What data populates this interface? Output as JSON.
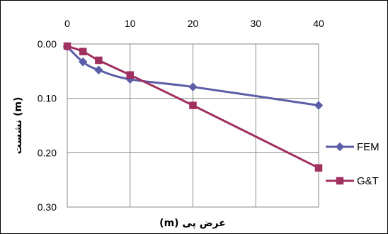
{
  "chart_data": {
    "type": "line",
    "title": "",
    "xlabel": "عرض پی (m)",
    "ylabel": "نشست (m)",
    "x_axis_position": "top",
    "y_axis_inverted": true,
    "xlim": [
      0,
      40
    ],
    "ylim": [
      0,
      0.3
    ],
    "x_ticks": [
      0,
      10,
      20,
      30,
      40
    ],
    "y_ticks": [
      0,
      0.1,
      0.2,
      0.3
    ],
    "x_tick_labels": [
      "0",
      "10",
      "20",
      "30",
      "40"
    ],
    "y_tick_labels": [
      "0.00",
      "0.10",
      "0.20",
      "0.30"
    ],
    "grid": {
      "vertical": true,
      "horizontal": true
    },
    "legend": {
      "position": "right"
    },
    "series": [
      {
        "name": "FEM",
        "color": "#5B5EA6",
        "marker": "diamond",
        "x": [
          0,
          2.5,
          5,
          10,
          20,
          40
        ],
        "y": [
          0.005,
          0.033,
          0.048,
          0.065,
          0.079,
          0.113
        ]
      },
      {
        "name": "G&T",
        "color": "#A0305F",
        "marker": "square",
        "x": [
          0,
          2.5,
          5,
          10,
          20,
          40
        ],
        "y": [
          0.004,
          0.014,
          0.03,
          0.057,
          0.113,
          0.228
        ]
      }
    ]
  }
}
